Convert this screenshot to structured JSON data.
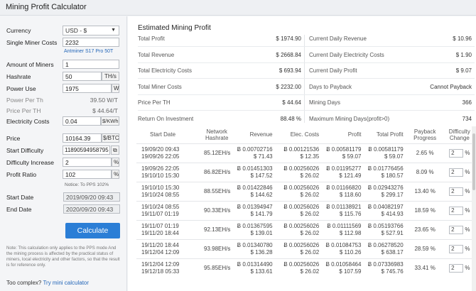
{
  "app": {
    "title": "Mining Profit Calculator"
  },
  "form": {
    "currency_label": "Currency",
    "currency_value": "USD - $",
    "miner_cost_label": "Single Miner Costs",
    "miner_cost_value": "2232",
    "miner_model_link": "Antminer S17 Pro 50T",
    "amount_label": "Amount of Miners",
    "amount_value": "1",
    "hashrate_label": "Hashrate",
    "hashrate_value": "50",
    "hashrate_unit": "TH/s",
    "power_label": "Power Use",
    "power_value": "1975",
    "power_unit": "W",
    "power_per_th_label": "Power Per Th",
    "power_per_th_value": "39.50 W/T",
    "price_per_th_label": "Price Per TH",
    "price_per_th_value": "$ 44.64/T",
    "electricity_label": "Electricity Costs",
    "electricity_value": "0.04",
    "electricity_unit": "$/KWh",
    "price_label": "Price",
    "price_value": "10164.39",
    "price_unit": "$/BTC",
    "start_difficulty_label": "Start Difficulty",
    "start_difficulty_value": "11890594958795",
    "difficulty_increase_label": "Difficulty Increase",
    "difficulty_increase_value": "2",
    "difficulty_increase_unit": "%",
    "profit_ratio_label": "Profit Ratio",
    "profit_ratio_value": "102",
    "profit_ratio_unit": "%",
    "profit_ratio_notice": "Notice: To PPS 102%",
    "start_date_label": "Start Date",
    "start_date_value": "2019/09/20 09:43",
    "end_date_label": "End Date",
    "end_date_value": "2020/09/20 09:43",
    "calculate_button": "Calculate",
    "note": "Note: This calculation only applies to the PPS mode And the mining process is affected by the practical status of miners, local electricity and other factors, so that the result is for reference only.",
    "too_complex_text": "Too complex?",
    "mini_calculator_link": "Try mini calculator"
  },
  "estimate": {
    "title": "Estimated Mining Profit",
    "left": [
      {
        "label": "Total Profit",
        "value": "$ 1974.90"
      },
      {
        "label": "Total Revenue",
        "value": "$ 2668.84"
      },
      {
        "label": "Total Electricity Costs",
        "value": "$ 693.94"
      },
      {
        "label": "Total Miner Costs",
        "value": "$ 2232.00"
      },
      {
        "label": "Price Per TH",
        "value": "$ 44.64"
      },
      {
        "label": "Return On Investment",
        "value": "88.48 %"
      }
    ],
    "right": [
      {
        "label": "Current Daily Revenue",
        "value": "$ 10.96"
      },
      {
        "label": "Current Daily Electricity Costs",
        "value": "$ 1.90"
      },
      {
        "label": "Current Daily Profit",
        "value": "$ 9.07"
      },
      {
        "label": "Days to Payback",
        "value": "Cannot Payback"
      },
      {
        "label": "Mining Days",
        "value": "366"
      },
      {
        "label": "Maximum Mining Days(profit>0)",
        "value": "734"
      }
    ]
  },
  "table": {
    "headers": [
      "Start Date",
      "Network Hashrate",
      "Revenue",
      "Elec. Costs",
      "Profit",
      "Total Profit",
      "Payback Progress",
      "Difficulty Change"
    ],
    "rows": [
      {
        "d1": "19/09/20 09:43",
        "d2": "19/09/26 22:05",
        "hash": "85.12EH/s",
        "rev1": "Ƀ 0.00702716",
        "rev2": "$ 71.43",
        "el1": "Ƀ 0.00121536",
        "el2": "$ 12.35",
        "pr1": "Ƀ 0.00581179",
        "pr2": "$ 59.07",
        "tp1": "Ƀ 0.00581179",
        "tp2": "$ 59.07",
        "pay": "2.65 %",
        "diff": "2",
        "unit": "%"
      },
      {
        "d1": "19/09/26 22:05",
        "d2": "19/10/10 15:30",
        "hash": "86.82EH/s",
        "rev1": "Ƀ 0.01451303",
        "rev2": "$ 147.52",
        "el1": "Ƀ 0.00256026",
        "el2": "$ 26.02",
        "pr1": "Ƀ 0.01195277",
        "pr2": "$ 121.49",
        "tp1": "Ƀ 0.01776456",
        "tp2": "$ 180.57",
        "pay": "8.09 %",
        "diff": "2",
        "unit": "%"
      },
      {
        "d1": "19/10/10 15:30",
        "d2": "19/10/24 08:55",
        "hash": "88.55EH/s",
        "rev1": "Ƀ 0.01422846",
        "rev2": "$ 144.62",
        "el1": "Ƀ 0.00256026",
        "el2": "$ 26.02",
        "pr1": "Ƀ 0.01166820",
        "pr2": "$ 118.60",
        "tp1": "Ƀ 0.02943276",
        "tp2": "$ 299.17",
        "pay": "13.40 %",
        "diff": "2",
        "unit": "%"
      },
      {
        "d1": "19/10/24 08:55",
        "d2": "19/11/07 01:19",
        "hash": "90.33EH/s",
        "rev1": "Ƀ 0.01394947",
        "rev2": "$ 141.79",
        "el1": "Ƀ 0.00256026",
        "el2": "$ 26.02",
        "pr1": "Ƀ 0.01138921",
        "pr2": "$ 115.76",
        "tp1": "Ƀ 0.04082197",
        "tp2": "$ 414.93",
        "pay": "18.59 %",
        "diff": "2",
        "unit": "%"
      },
      {
        "d1": "19/11/07 01:19",
        "d2": "19/11/20 18:44",
        "hash": "92.13EH/s",
        "rev1": "Ƀ 0.01367595",
        "rev2": "$ 139.01",
        "el1": "Ƀ 0.00256026",
        "el2": "$ 26.02",
        "pr1": "Ƀ 0.01111569",
        "pr2": "$ 112.98",
        "tp1": "Ƀ 0.05193766",
        "tp2": "$ 527.91",
        "pay": "23.65 %",
        "diff": "2",
        "unit": "%"
      },
      {
        "d1": "19/11/20 18:44",
        "d2": "19/12/04 12:09",
        "hash": "93.98EH/s",
        "rev1": "Ƀ 0.01340780",
        "rev2": "$ 136.28",
        "el1": "Ƀ 0.00256026",
        "el2": "$ 26.02",
        "pr1": "Ƀ 0.01084753",
        "pr2": "$ 110.26",
        "tp1": "Ƀ 0.06278520",
        "tp2": "$ 638.17",
        "pay": "28.59 %",
        "diff": "2",
        "unit": "%"
      },
      {
        "d1": "19/12/04 12:09",
        "d2": "19/12/18 05:33",
        "hash": "95.85EH/s",
        "rev1": "Ƀ 0.01314490",
        "rev2": "$ 133.61",
        "el1": "Ƀ 0.00256026",
        "el2": "$ 26.02",
        "pr1": "Ƀ 0.01058464",
        "pr2": "$ 107.59",
        "tp1": "Ƀ 0.07336983",
        "tp2": "$ 745.76",
        "pay": "33.41 %",
        "diff": "2",
        "unit": "%"
      }
    ]
  },
  "colors": {
    "accent": "#2b7ed6",
    "link": "#2366b8"
  }
}
